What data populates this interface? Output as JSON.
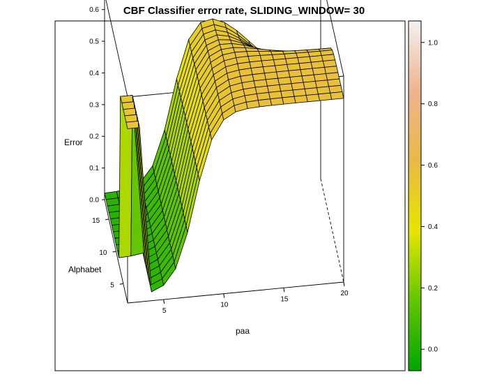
{
  "chart_data": {
    "type": "surface",
    "title": "CBF Classifier error rate, SLIDING_WINDOW= 30",
    "xlabel": "paa",
    "ylabel": "Alphabet",
    "zlabel": "Error",
    "x_ticks": [
      "5",
      "10",
      "15",
      "20"
    ],
    "y_ticks": [
      "5",
      "10",
      "15"
    ],
    "z_ticks": [
      "0.0",
      "0.1",
      "0.2",
      "0.3",
      "0.4",
      "0.5",
      "0.6"
    ],
    "xlim": [
      2,
      20
    ],
    "ylim": [
      2,
      18
    ],
    "zlim": [
      0,
      0.65
    ],
    "colorkey": {
      "ticks": [
        "0.0",
        "0.2",
        "0.4",
        "0.6",
        "0.8",
        "1.0"
      ],
      "range": [
        -0.07,
        1.07
      ],
      "colors": [
        "#00a600",
        "#63c600",
        "#e6e600",
        "#e8b945",
        "#edb48f",
        "#f2f2f2"
      ]
    },
    "surface_description": "Error rises steeply with paa from ~0.02 at paa<=6 to a plateau ~0.55-0.6 for paa>=10; error at high alphabet and high paa drops to ~0.3-0.45; a thin spike ~0.55 at paa=2-3, low alphabet"
  }
}
